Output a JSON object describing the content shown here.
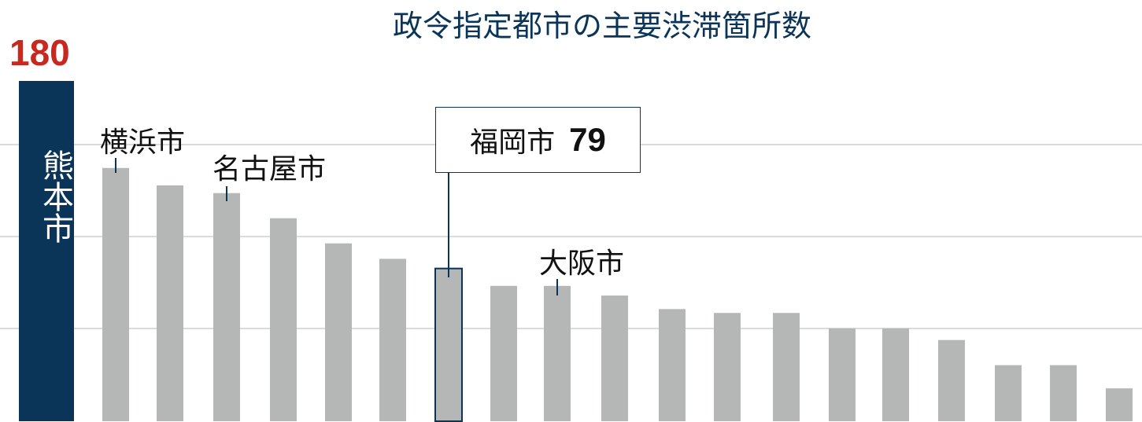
{
  "chart_data": {
    "type": "bar",
    "title": "政令指定都市の主要渋滞箇所数",
    "categories": [
      "熊本市",
      "横浜市",
      null,
      "名古屋市",
      null,
      null,
      null,
      "福岡市",
      null,
      "大阪市",
      null,
      null,
      null,
      null,
      null,
      null,
      null,
      null,
      null,
      null
    ],
    "values": [
      180,
      131,
      122,
      118,
      105,
      92,
      84,
      79,
      70,
      70,
      65,
      58,
      56,
      56,
      48,
      48,
      42,
      29,
      29,
      17
    ],
    "highlight": {
      "name": "熊本市",
      "value_label": "180",
      "color": "#0b3558",
      "value_color": "#c8281e"
    },
    "callout": {
      "name": "福岡市",
      "value_label": "79"
    },
    "bar_color": "#b5b6b6",
    "grid": true,
    "xlabel": "",
    "ylabel": ""
  }
}
